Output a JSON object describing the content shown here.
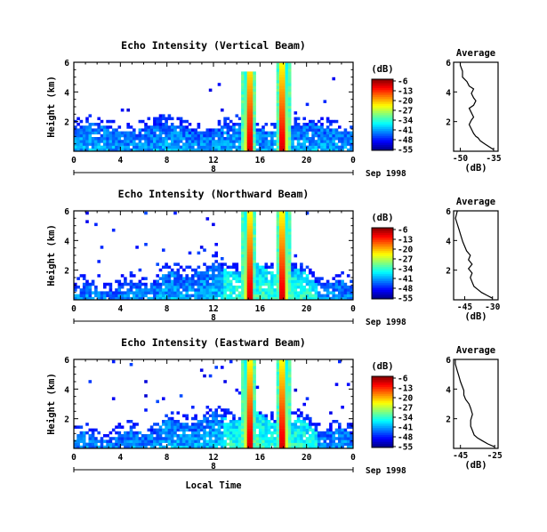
{
  "chart_data": [
    {
      "type": "heatmap",
      "title": "Echo Intensity (Vertical Beam)",
      "xlabel": "",
      "ylabel": "Height (km)",
      "xlim": [
        0,
        24
      ],
      "ylim": [
        0,
        6
      ],
      "xticks": [
        "0",
        "4",
        "8",
        "12",
        "16",
        "20",
        "0"
      ],
      "yticks": [
        "2",
        "4",
        "6"
      ],
      "date_day": "8",
      "date_label": "Sep 1998",
      "colorbar": {
        "unit": "(dB)",
        "labels": [
          "-6",
          "-13",
          "-20",
          "-27",
          "-34",
          "-41",
          "-48",
          "-55"
        ],
        "range": [
          -55,
          -6
        ]
      },
      "rain_events": [
        {
          "start": 14.7,
          "end": 15.4,
          "top": 5.5
        },
        {
          "start": 17.7,
          "end": 18.4,
          "top": 6.0
        }
      ],
      "average_profile": {
        "title": "Average",
        "xlabel": "(dB)",
        "xticks": [
          "-50",
          "-35"
        ],
        "yticks": [
          "2",
          "4",
          "6"
        ],
        "xlim": [
          -53,
          -33
        ],
        "ylim": [
          0,
          6
        ],
        "points": [
          [
            -35,
            0.1
          ],
          [
            -37,
            0.3
          ],
          [
            -39,
            0.5
          ],
          [
            -41,
            0.7
          ],
          [
            -42,
            0.9
          ],
          [
            -43,
            1.0
          ],
          [
            -44,
            1.2
          ],
          [
            -45,
            1.5
          ],
          [
            -46,
            1.8
          ],
          [
            -45,
            2.1
          ],
          [
            -44,
            2.3
          ],
          [
            -45,
            2.6
          ],
          [
            -46,
            2.9
          ],
          [
            -44,
            3.1
          ],
          [
            -43,
            3.4
          ],
          [
            -44,
            3.6
          ],
          [
            -45,
            3.9
          ],
          [
            -44,
            4.2
          ],
          [
            -46,
            4.4
          ],
          [
            -47,
            4.7
          ],
          [
            -49,
            5.0
          ],
          [
            -49,
            5.4
          ],
          [
            -50,
            5.8
          ],
          [
            -50,
            6.0
          ]
        ]
      }
    },
    {
      "type": "heatmap",
      "title": "Echo Intensity (Northward Beam)",
      "xlabel": "",
      "ylabel": "Height (km)",
      "xlim": [
        0,
        24
      ],
      "ylim": [
        0,
        6
      ],
      "xticks": [
        "0",
        "4",
        "8",
        "12",
        "16",
        "20",
        "0"
      ],
      "yticks": [
        "2",
        "4",
        "6"
      ],
      "date_day": "8",
      "date_label": "Sep 1998",
      "colorbar": {
        "unit": "(dB)",
        "labels": [
          "-6",
          "-13",
          "-20",
          "-27",
          "-34",
          "-41",
          "-48",
          "-55"
        ],
        "range": [
          -55,
          -6
        ]
      },
      "rain_events": [
        {
          "start": 14.7,
          "end": 15.4,
          "top": 6.0
        },
        {
          "start": 17.7,
          "end": 18.4,
          "top": 6.0
        }
      ],
      "average_profile": {
        "title": "Average",
        "xlabel": "(dB)",
        "xticks": [
          "-45",
          "-30"
        ],
        "yticks": [
          "2",
          "4",
          "6"
        ],
        "xlim": [
          -51,
          -27
        ],
        "ylim": [
          0,
          6
        ],
        "points": [
          [
            -30,
            0.1
          ],
          [
            -33,
            0.3
          ],
          [
            -36,
            0.5
          ],
          [
            -38,
            0.7
          ],
          [
            -40,
            0.9
          ],
          [
            -41,
            1.2
          ],
          [
            -42,
            1.5
          ],
          [
            -41,
            1.8
          ],
          [
            -43,
            2.1
          ],
          [
            -41,
            2.4
          ],
          [
            -43,
            2.7
          ],
          [
            -42,
            3.0
          ],
          [
            -44,
            3.3
          ],
          [
            -45,
            3.6
          ],
          [
            -46,
            3.9
          ],
          [
            -47,
            4.3
          ],
          [
            -48,
            4.7
          ],
          [
            -49,
            5.1
          ],
          [
            -50,
            5.5
          ],
          [
            -49,
            6.0
          ]
        ]
      }
    },
    {
      "type": "heatmap",
      "title": "Echo Intensity (Eastward Beam)",
      "xlabel": "Local Time",
      "ylabel": "Height (km)",
      "xlim": [
        0,
        24
      ],
      "ylim": [
        0,
        6
      ],
      "xticks": [
        "0",
        "4",
        "8",
        "12",
        "16",
        "20",
        "0"
      ],
      "yticks": [
        "2",
        "4",
        "6"
      ],
      "date_day": "8",
      "date_label": "Sep 1998",
      "colorbar": {
        "unit": "(dB)",
        "labels": [
          "-6",
          "-13",
          "-20",
          "-27",
          "-34",
          "-41",
          "-48",
          "-55"
        ],
        "range": [
          -55,
          -6
        ]
      },
      "rain_events": [
        {
          "start": 14.7,
          "end": 15.4,
          "top": 6.0
        },
        {
          "start": 17.7,
          "end": 18.4,
          "top": 6.0
        }
      ],
      "average_profile": {
        "title": "Average",
        "xlabel": "(dB)",
        "xticks": [
          "-45",
          "-25"
        ],
        "yticks": [
          "2",
          "4",
          "6"
        ],
        "xlim": [
          -49,
          -23
        ],
        "ylim": [
          0,
          6
        ],
        "points": [
          [
            -25,
            0.1
          ],
          [
            -29,
            0.3
          ],
          [
            -32,
            0.5
          ],
          [
            -35,
            0.7
          ],
          [
            -37,
            0.9
          ],
          [
            -38,
            1.2
          ],
          [
            -39,
            1.5
          ],
          [
            -39,
            1.9
          ],
          [
            -38,
            2.3
          ],
          [
            -39,
            2.7
          ],
          [
            -40,
            3.0
          ],
          [
            -42,
            3.3
          ],
          [
            -43,
            3.6
          ],
          [
            -43,
            3.9
          ],
          [
            -44,
            4.2
          ],
          [
            -45,
            4.5
          ],
          [
            -46,
            4.9
          ],
          [
            -47,
            5.3
          ],
          [
            -48,
            5.7
          ],
          [
            -48,
            6.0
          ]
        ]
      }
    }
  ]
}
